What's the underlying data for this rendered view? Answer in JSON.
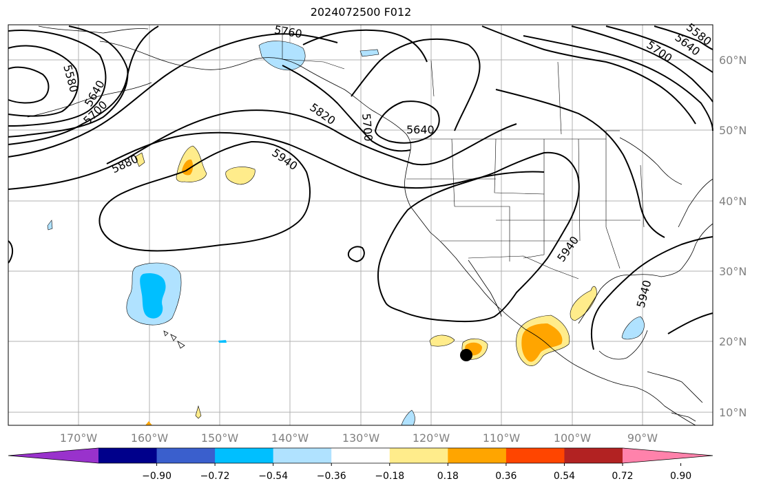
{
  "title": "2024072500 F012",
  "map": {
    "lon_labels": [
      "170°W",
      "160°W",
      "150°W",
      "140°W",
      "130°W",
      "120°W",
      "110°W",
      "100°W",
      "90°W"
    ],
    "lat_labels": [
      "60°N",
      "50°N",
      "40°N",
      "30°N",
      "20°N",
      "10°N"
    ],
    "contour_labels": [
      "5580",
      "5640",
      "5700",
      "5760",
      "5820",
      "5880",
      "5940",
      "5700",
      "5640",
      "5940",
      "5940",
      "5700",
      "5640",
      "5580"
    ]
  },
  "colorbar": {
    "ticks": [
      "−0.90",
      "−0.72",
      "−0.54",
      "−0.36",
      "−0.18",
      "0.18",
      "0.36",
      "0.54",
      "0.72",
      "0.90"
    ],
    "colors": [
      "#9932cc",
      "#00008b",
      "#3a5fcd",
      "#00bfff",
      "#b0e2ff",
      "#ffffff",
      "#ffec8b",
      "#ffa500",
      "#ff4500",
      "#b22222",
      "#ff82ab"
    ]
  },
  "marker": {
    "label": ""
  }
}
